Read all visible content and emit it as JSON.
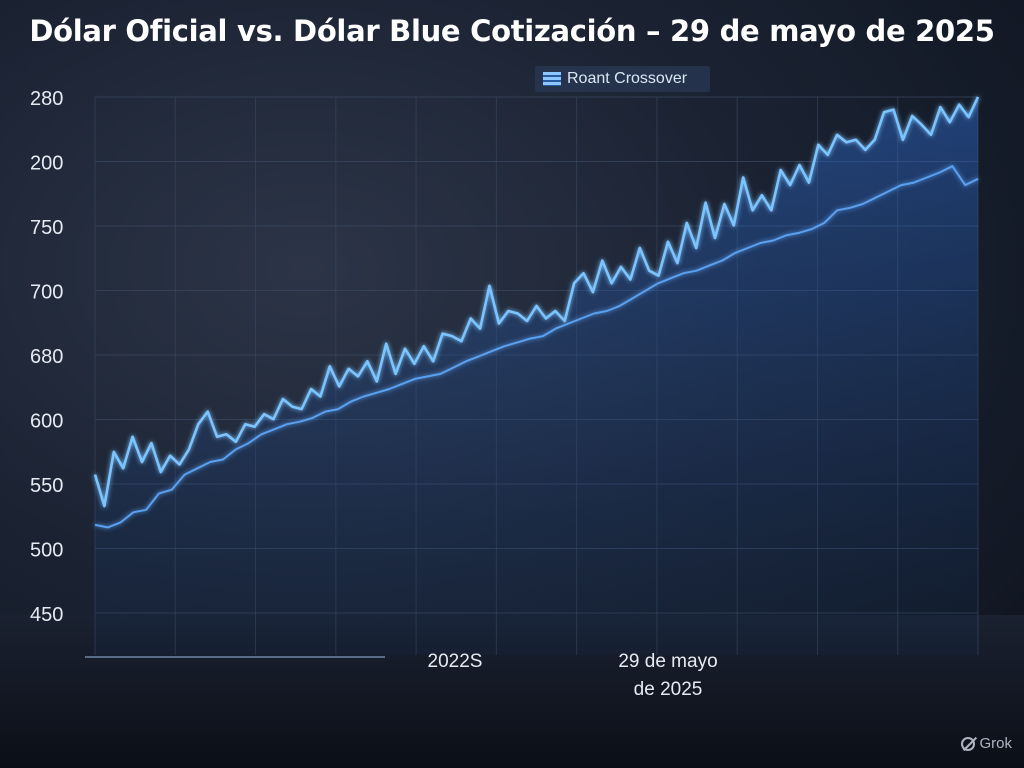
{
  "chart_data": {
    "type": "line",
    "title": "Dólar Oficial vs. Dólar Blue Cotización – 29 de mayo de 2025",
    "legend": {
      "label": "Roant Crossover",
      "placement": "top-center"
    },
    "y_tick_labels": [
      "280",
      "200",
      "750",
      "700",
      "680",
      "600",
      "550",
      "500",
      "450"
    ],
    "x_tick_labels": [
      {
        "lines": [
          "2022S"
        ]
      },
      {
        "lines": [
          "29 de mayo",
          "de 2025"
        ]
      }
    ],
    "grid": true,
    "series": [
      {
        "values": [
          560,
          535,
          578,
          565,
          590,
          570,
          585,
          562,
          575,
          568,
          580,
          600,
          610,
          590,
          592,
          586,
          600,
          598,
          608,
          604,
          620,
          614,
          612,
          628,
          622,
          646,
          630,
          644,
          638,
          650,
          634,
          664,
          640,
          660,
          648,
          662,
          650,
          672,
          670,
          666,
          684,
          676,
          710,
          680,
          690,
          688,
          682,
          694,
          684,
          690,
          682,
          712,
          720,
          705,
          730,
          712,
          725,
          715,
          740,
          722,
          718,
          745,
          728,
          760,
          740,
          776,
          748,
          775,
          758,
          796,
          770,
          782,
          770,
          802,
          790,
          806,
          792,
          822,
          814,
          830,
          824,
          826,
          818,
          826,
          848,
          850,
          826,
          845,
          838,
          830,
          852,
          840,
          854,
          844,
          860
        ]
      },
      {
        "values": [
          520,
          518,
          522,
          530,
          532,
          545,
          548,
          560,
          565,
          570,
          572,
          580,
          585,
          592,
          596,
          600,
          602,
          605,
          610,
          612,
          618,
          622,
          625,
          628,
          632,
          636,
          638,
          640,
          645,
          650,
          654,
          658,
          662,
          665,
          668,
          670,
          676,
          680,
          684,
          688,
          690,
          694,
          700,
          706,
          712,
          716,
          720,
          722,
          726,
          730,
          736,
          740,
          744,
          746,
          750,
          752,
          755,
          760,
          770,
          772,
          775,
          780,
          785,
          790,
          792,
          796,
          800,
          805,
          790,
          795
        ]
      }
    ]
  },
  "watermark": "Grok"
}
